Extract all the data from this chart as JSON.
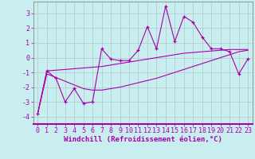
{
  "xlabel": "Windchill (Refroidissement éolien,°C)",
  "background_color": "#c8eef0",
  "grid_color": "#b0c8c8",
  "line_color": "#aa00aa",
  "spine_color": "#888888",
  "x_data": [
    0,
    1,
    2,
    3,
    4,
    5,
    6,
    7,
    8,
    9,
    10,
    11,
    12,
    13,
    14,
    15,
    16,
    17,
    18,
    19,
    20,
    21,
    22,
    23
  ],
  "y_main": [
    -3.8,
    -0.9,
    -1.4,
    -3.0,
    -2.1,
    -3.1,
    -3.0,
    0.6,
    -0.1,
    -0.2,
    -0.2,
    0.5,
    2.1,
    0.6,
    3.5,
    1.1,
    2.8,
    2.4,
    1.4,
    0.6,
    0.6,
    0.4,
    -1.1,
    -0.1
  ],
  "y_line1": [
    -3.8,
    -0.9,
    -0.85,
    -0.8,
    -0.75,
    -0.7,
    -0.65,
    -0.6,
    -0.5,
    -0.4,
    -0.3,
    -0.2,
    -0.1,
    0.0,
    0.1,
    0.2,
    0.3,
    0.35,
    0.4,
    0.45,
    0.5,
    0.55,
    0.55,
    0.55
  ],
  "y_line2": [
    -3.8,
    -1.1,
    -1.35,
    -1.6,
    -1.85,
    -2.1,
    -2.2,
    -2.2,
    -2.1,
    -2.0,
    -1.85,
    -1.7,
    -1.55,
    -1.4,
    -1.2,
    -1.0,
    -0.8,
    -0.6,
    -0.4,
    -0.2,
    0.0,
    0.2,
    0.4,
    0.5
  ],
  "xlim": [
    -0.5,
    23.5
  ],
  "ylim": [
    -4.5,
    3.8
  ],
  "yticks": [
    -4,
    -3,
    -2,
    -1,
    0,
    1,
    2,
    3
  ],
  "xticks": [
    0,
    1,
    2,
    3,
    4,
    5,
    6,
    7,
    8,
    9,
    10,
    11,
    12,
    13,
    14,
    15,
    16,
    17,
    18,
    19,
    20,
    21,
    22,
    23
  ],
  "tick_fontsize": 6,
  "xlabel_fontsize": 6.5
}
